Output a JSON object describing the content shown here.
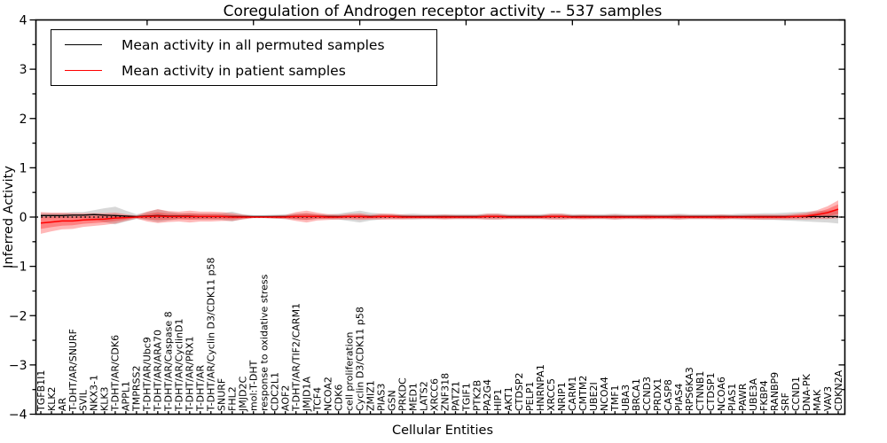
{
  "chart_data": {
    "type": "line",
    "title": "Coregulation of Androgen receptor activity -- 537 samples",
    "xlabel": "Cellular Entities",
    "ylabel": "Inferred Activity",
    "ylim": [
      -4,
      4
    ],
    "grid": false,
    "legend_position": "upper left",
    "zero_reference_line": true,
    "yticks": [
      {
        "v": 4,
        "label": "4"
      },
      {
        "v": 3,
        "label": "3"
      },
      {
        "v": 2,
        "label": "2"
      },
      {
        "v": 1,
        "label": "1"
      },
      {
        "v": 0,
        "label": "0"
      },
      {
        "v": -1,
        "label": "−1"
      },
      {
        "v": -2,
        "label": "−2"
      },
      {
        "v": -3,
        "label": "−3"
      },
      {
        "v": -4,
        "label": "−4"
      }
    ],
    "categories": [
      "TGFB1I1",
      "KLK2",
      "AR",
      "T-DHT/AR/SNURF",
      "SVIL",
      "NKX3-1",
      "KLK3",
      "T-DHT/AR/CDK6",
      "APPL1",
      "TMPRSS2",
      "T-DHT/AR/Ubc9",
      "T-DHT/AR/ARA70",
      "T-DHT/AR/Caspase 8",
      "T-DHT/AR/CyclinD1",
      "T-DHT/AR/PRX1",
      "T-DHT/AR",
      "T-DHT/AR/Cyclin D3/CDK11 p58",
      "SNURF",
      "FHL2",
      "JMJD2C",
      "mol:T-DHT",
      "response to oxidative stress",
      "CDC2L1",
      "AOF2",
      "T-DHT/AR/TIF2/CARM1",
      "JMJD1A",
      "TCF4",
      "NCOA2",
      "CDK6",
      "cell proliferation",
      "Cyclin D3/CDK11 p58",
      "ZMIZ1",
      "PIAS3",
      "GSN",
      "PRKDC",
      "MED1",
      "LATS2",
      "XRCC6",
      "ZNF318",
      "PATZ1",
      "TGIF1",
      "PTK2B",
      "PA2G4",
      "HIP1",
      "AKT1",
      "CTDSP2",
      "PELP1",
      "HNRNPA1",
      "XRCC5",
      "NRIP1",
      "CARM1",
      "CMTM2",
      "UBE2I",
      "NCOA4",
      "TMF1",
      "UBA3",
      "BRCA1",
      "CCND3",
      "PRDX1",
      "CASP8",
      "PIAS4",
      "RPS6KA3",
      "CTNNB1",
      "CTDSP1",
      "NCOA6",
      "PIAS1",
      "PAWR",
      "UBE3A",
      "FKBP4",
      "RANBP9",
      "SRF",
      "CCND1",
      "DNA-PK",
      "MAK",
      "VAV3",
      "CDKN2A"
    ],
    "series": [
      {
        "name": "Mean activity in all permuted samples",
        "color": "#000000",
        "band_color": "#999999",
        "values": [
          0.03,
          0.03,
          0.03,
          0.04,
          0.04,
          0.05,
          0.04,
          0.03,
          0.02,
          0.01,
          0.02,
          0.03,
          0.02,
          0.02,
          0.02,
          0.01,
          0.01,
          0.01,
          0.01,
          0.01,
          0.01,
          0.01,
          0.01,
          0.01,
          0.01,
          0.01,
          0.01,
          0.01,
          0.01,
          0.01,
          0.01,
          0.01,
          0.01,
          0.01,
          0.01,
          0.01,
          0.01,
          0.01,
          0.01,
          0.01,
          0.01,
          0.01,
          0.01,
          0.01,
          0.01,
          0.01,
          0.01,
          0.01,
          0.01,
          0.01,
          0.01,
          0.01,
          0.01,
          0.01,
          0.01,
          0.01,
          0.01,
          0.01,
          0.01,
          0.01,
          0.01,
          0.01,
          0.01,
          0.01,
          0.01,
          0.01,
          0.01,
          0.01,
          0.01,
          0.01,
          0.01,
          0.01,
          0.01,
          0.01,
          0.01,
          0.01
        ],
        "band_halfwidth": [
          0.05,
          0.05,
          0.05,
          0.06,
          0.06,
          0.09,
          0.14,
          0.18,
          0.11,
          0.05,
          0.08,
          0.13,
          0.09,
          0.06,
          0.06,
          0.06,
          0.06,
          0.07,
          0.1,
          0.05,
          0.03,
          0.03,
          0.04,
          0.05,
          0.06,
          0.07,
          0.05,
          0.05,
          0.06,
          0.09,
          0.12,
          0.08,
          0.06,
          0.05,
          0.05,
          0.06,
          0.05,
          0.05,
          0.05,
          0.05,
          0.05,
          0.05,
          0.06,
          0.06,
          0.05,
          0.05,
          0.05,
          0.05,
          0.06,
          0.06,
          0.05,
          0.05,
          0.05,
          0.05,
          0.06,
          0.05,
          0.05,
          0.05,
          0.05,
          0.05,
          0.06,
          0.05,
          0.05,
          0.05,
          0.05,
          0.05,
          0.06,
          0.06,
          0.07,
          0.07,
          0.08,
          0.09,
          0.1,
          0.11,
          0.12,
          0.14
        ]
      },
      {
        "name": "Mean activity in patient samples",
        "color": "#ff0000",
        "band_color": "#ff0000",
        "values": [
          -0.12,
          -0.1,
          -0.08,
          -0.08,
          -0.06,
          -0.05,
          -0.04,
          -0.02,
          -0.01,
          0.0,
          0.01,
          0.02,
          0.01,
          0.01,
          0.01,
          0.01,
          0.01,
          0.01,
          0.0,
          0.0,
          0.0,
          0.0,
          0.0,
          0.0,
          0.01,
          0.01,
          0.01,
          0.0,
          0.0,
          0.01,
          0.01,
          0.0,
          0.01,
          0.01,
          0.0,
          0.0,
          0.0,
          0.0,
          0.0,
          0.0,
          0.0,
          0.0,
          0.01,
          0.01,
          0.0,
          0.0,
          0.0,
          0.0,
          0.01,
          0.01,
          0.0,
          0.0,
          0.0,
          0.0,
          0.0,
          0.0,
          0.0,
          0.0,
          0.0,
          0.0,
          0.0,
          0.0,
          0.0,
          0.0,
          0.0,
          0.0,
          0.0,
          0.0,
          0.0,
          0.0,
          0.0,
          0.01,
          0.02,
          0.05,
          0.09,
          0.16
        ],
        "band_halfwidth": [
          0.22,
          0.19,
          0.17,
          0.16,
          0.14,
          0.13,
          0.12,
          0.11,
          0.07,
          0.03,
          0.1,
          0.14,
          0.11,
          0.1,
          0.12,
          0.1,
          0.1,
          0.09,
          0.08,
          0.05,
          0.02,
          0.02,
          0.03,
          0.04,
          0.09,
          0.12,
          0.08,
          0.06,
          0.05,
          0.06,
          0.07,
          0.05,
          0.06,
          0.06,
          0.05,
          0.04,
          0.04,
          0.04,
          0.05,
          0.04,
          0.04,
          0.04,
          0.06,
          0.06,
          0.04,
          0.04,
          0.04,
          0.04,
          0.06,
          0.06,
          0.04,
          0.05,
          0.04,
          0.04,
          0.05,
          0.04,
          0.04,
          0.05,
          0.04,
          0.04,
          0.05,
          0.04,
          0.04,
          0.04,
          0.05,
          0.04,
          0.04,
          0.05,
          0.05,
          0.05,
          0.05,
          0.06,
          0.07,
          0.09,
          0.13,
          0.18
        ]
      }
    ]
  }
}
